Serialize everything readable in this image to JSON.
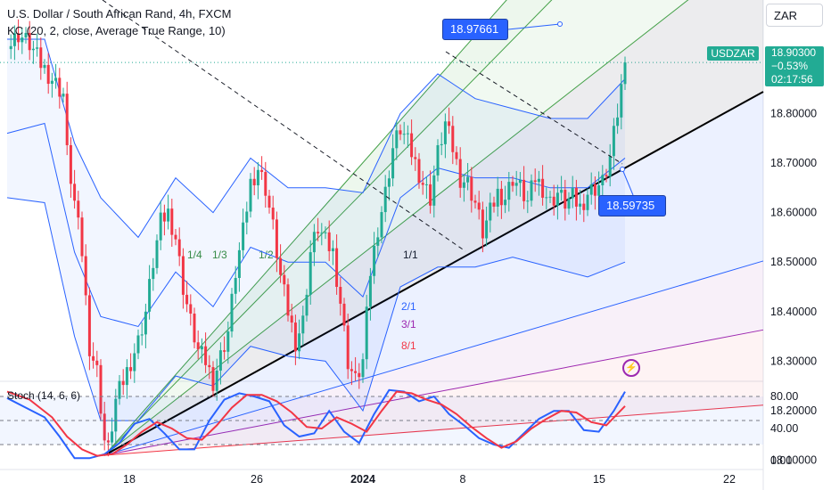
{
  "legend": {
    "title": "U.S. Dollar / South African Rand, 4h, FXCM",
    "indicator": "KC (20, 2, close, Average True Range, 10)",
    "oscillator": "Stoch (14, 6, 6)"
  },
  "currency_selector": "ZAR",
  "price_badge": {
    "symbol": "USDZAR",
    "price": "18.90300",
    "change": "−0.53%",
    "countdown": "02:17:56"
  },
  "callouts": {
    "upper": "18.97661",
    "lower": "18.59735"
  },
  "fan_labels": [
    "1/4",
    "1/3",
    "1/2",
    "1/1",
    "2/1",
    "3/1",
    "8/1"
  ],
  "colors": {
    "up": "#22ab94",
    "down": "#f23645",
    "kc": "#2962ff",
    "stoch_k": "#2962ff",
    "stoch_d": "#f23645",
    "trendline": "#000000"
  },
  "chart_data": [
    {
      "type": "candlestick",
      "title": "U.S. Dollar / South African Rand, 4h, FXCM",
      "x_ticks": [
        "18",
        "26",
        "2024",
        "8",
        "15",
        "22"
      ],
      "y_ticks": [
        "18.80000",
        "18.70000",
        "18.60000",
        "18.50000",
        "18.40000",
        "18.30000",
        "18.20000",
        "18.10000"
      ],
      "ylim": [
        18.06,
        19.01
      ],
      "last_price": 18.903,
      "candle_close_path": [
        [
          0,
          18.93
        ],
        [
          3,
          18.96
        ],
        [
          6,
          18.94
        ],
        [
          9,
          18.9
        ],
        [
          12,
          18.87
        ],
        [
          15,
          18.84
        ],
        [
          16,
          18.72
        ],
        [
          18,
          18.62
        ],
        [
          20,
          18.52
        ],
        [
          22,
          18.33
        ],
        [
          24,
          18.28
        ],
        [
          26,
          18.14
        ],
        [
          27,
          18.12
        ],
        [
          29,
          18.22
        ],
        [
          32,
          18.28
        ],
        [
          35,
          18.34
        ],
        [
          37,
          18.4
        ],
        [
          39,
          18.5
        ],
        [
          41,
          18.58
        ],
        [
          43,
          18.6
        ],
        [
          45,
          18.55
        ],
        [
          47,
          18.45
        ],
        [
          49,
          18.38
        ],
        [
          51,
          18.32
        ],
        [
          53,
          18.3
        ],
        [
          55,
          18.26
        ],
        [
          57,
          18.31
        ],
        [
          59,
          18.36
        ],
        [
          61,
          18.48
        ],
        [
          63,
          18.56
        ],
        [
          65,
          18.66
        ],
        [
          67,
          18.69
        ],
        [
          69,
          18.65
        ],
        [
          71,
          18.57
        ],
        [
          73,
          18.47
        ],
        [
          75,
          18.4
        ],
        [
          77,
          18.34
        ],
        [
          79,
          18.38
        ],
        [
          81,
          18.52
        ],
        [
          83,
          18.57
        ],
        [
          85,
          18.54
        ],
        [
          87,
          18.52
        ],
        [
          89,
          18.42
        ],
        [
          91,
          18.3
        ],
        [
          93,
          18.26
        ],
        [
          95,
          18.3
        ],
        [
          97,
          18.48
        ],
        [
          99,
          18.57
        ],
        [
          101,
          18.64
        ],
        [
          103,
          18.73
        ],
        [
          105,
          18.77
        ],
        [
          107,
          18.74
        ],
        [
          109,
          18.7
        ],
        [
          111,
          18.66
        ],
        [
          113,
          18.63
        ],
        [
          115,
          18.72
        ],
        [
          117,
          18.78
        ],
        [
          119,
          18.73
        ],
        [
          121,
          18.67
        ],
        [
          123,
          18.66
        ],
        [
          125,
          18.62
        ],
        [
          127,
          18.56
        ],
        [
          129,
          18.6
        ],
        [
          131,
          18.64
        ],
        [
          133,
          18.63
        ],
        [
          135,
          18.67
        ],
        [
          137,
          18.65
        ],
        [
          139,
          18.62
        ],
        [
          141,
          18.67
        ],
        [
          143,
          18.65
        ],
        [
          145,
          18.62
        ],
        [
          147,
          18.64
        ],
        [
          149,
          18.62
        ],
        [
          151,
          18.63
        ],
        [
          153,
          18.61
        ],
        [
          155,
          18.64
        ],
        [
          157,
          18.65
        ],
        [
          159,
          18.66
        ],
        [
          161,
          18.71
        ],
        [
          163,
          18.8
        ],
        [
          165,
          18.903
        ]
      ],
      "keltner": {
        "upper": [
          [
            0,
            18.95
          ],
          [
            10,
            18.95
          ],
          [
            18,
            18.74
          ],
          [
            25,
            18.63
          ],
          [
            35,
            18.55
          ],
          [
            45,
            18.67
          ],
          [
            55,
            18.6
          ],
          [
            65,
            18.71
          ],
          [
            75,
            18.65
          ],
          [
            85,
            18.65
          ],
          [
            95,
            18.64
          ],
          [
            105,
            18.8
          ],
          [
            115,
            18.88
          ],
          [
            125,
            18.83
          ],
          [
            135,
            18.81
          ],
          [
            145,
            18.79
          ],
          [
            155,
            18.79
          ],
          [
            165,
            18.87
          ]
        ],
        "middle": [
          [
            0,
            18.76
          ],
          [
            10,
            18.78
          ],
          [
            18,
            18.52
          ],
          [
            25,
            18.39
          ],
          [
            35,
            18.37
          ],
          [
            45,
            18.48
          ],
          [
            55,
            18.41
          ],
          [
            65,
            18.53
          ],
          [
            75,
            18.5
          ],
          [
            85,
            18.5
          ],
          [
            95,
            18.43
          ],
          [
            105,
            18.63
          ],
          [
            115,
            18.69
          ],
          [
            125,
            18.67
          ],
          [
            135,
            18.67
          ],
          [
            145,
            18.65
          ],
          [
            155,
            18.65
          ],
          [
            165,
            18.71
          ]
        ],
        "lower": [
          [
            0,
            18.63
          ],
          [
            10,
            18.62
          ],
          [
            18,
            18.35
          ],
          [
            25,
            18.18
          ],
          [
            35,
            18.18
          ],
          [
            45,
            18.27
          ],
          [
            55,
            18.25
          ],
          [
            65,
            18.33
          ],
          [
            75,
            18.31
          ],
          [
            85,
            18.3
          ],
          [
            95,
            18.2
          ],
          [
            105,
            18.45
          ],
          [
            115,
            18.49
          ],
          [
            125,
            18.49
          ],
          [
            135,
            18.51
          ],
          [
            145,
            18.49
          ],
          [
            155,
            18.47
          ],
          [
            165,
            18.5
          ]
        ]
      },
      "fan_origin": [
        26,
        18.11
      ],
      "fan_ratio_prices_at_bar_165": {
        "1/4": 19.3,
        "1/3": 19.18,
        "1/2": 18.93,
        "1/1": 18.69,
        "2/1": 18.42,
        "3/1": 18.31,
        "8/1": 18.19
      }
    },
    {
      "type": "line",
      "title": "Stoch (14, 6, 6)",
      "y_ticks": [
        "80.00",
        "40.00",
        "0.00"
      ],
      "ylim": [
        -5,
        100
      ],
      "series": [
        {
          "name": "%K",
          "values": [
            [
              0,
              78
            ],
            [
              5,
              66
            ],
            [
              10,
              54
            ],
            [
              14,
              30
            ],
            [
              18,
              3
            ],
            [
              22,
              3
            ],
            [
              26,
              8
            ],
            [
              30,
              22
            ],
            [
              34,
              46
            ],
            [
              38,
              52
            ],
            [
              42,
              34
            ],
            [
              46,
              14
            ],
            [
              50,
              14
            ],
            [
              54,
              50
            ],
            [
              58,
              76
            ],
            [
              62,
              84
            ],
            [
              66,
              80
            ],
            [
              70,
              74
            ],
            [
              74,
              44
            ],
            [
              78,
              30
            ],
            [
              82,
              34
            ],
            [
              86,
              62
            ],
            [
              90,
              36
            ],
            [
              94,
              22
            ],
            [
              98,
              58
            ],
            [
              102,
              88
            ],
            [
              106,
              86
            ],
            [
              110,
              74
            ],
            [
              114,
              80
            ],
            [
              118,
              58
            ],
            [
              122,
              44
            ],
            [
              126,
              28
            ],
            [
              130,
              20
            ],
            [
              134,
              16
            ],
            [
              138,
              34
            ],
            [
              142,
              52
            ],
            [
              146,
              62
            ],
            [
              150,
              62
            ],
            [
              154,
              38
            ],
            [
              158,
              36
            ],
            [
              162,
              62
            ],
            [
              165,
              86
            ]
          ]
        },
        {
          "name": "%D",
          "values": [
            [
              0,
              86
            ],
            [
              6,
              76
            ],
            [
              12,
              54
            ],
            [
              16,
              30
            ],
            [
              20,
              14
            ],
            [
              24,
              6
            ],
            [
              28,
              8
            ],
            [
              32,
              20
            ],
            [
              36,
              36
            ],
            [
              40,
              48
            ],
            [
              44,
              40
            ],
            [
              48,
              28
            ],
            [
              52,
              26
            ],
            [
              56,
              44
            ],
            [
              60,
              66
            ],
            [
              64,
              82
            ],
            [
              68,
              82
            ],
            [
              72,
              74
            ],
            [
              76,
              60
            ],
            [
              80,
              42
            ],
            [
              84,
              40
            ],
            [
              88,
              54
            ],
            [
              92,
              46
            ],
            [
              96,
              36
            ],
            [
              100,
              62
            ],
            [
              104,
              86
            ],
            [
              108,
              84
            ],
            [
              112,
              76
            ],
            [
              116,
              70
            ],
            [
              120,
              58
            ],
            [
              124,
              42
            ],
            [
              128,
              28
            ],
            [
              132,
              16
            ],
            [
              136,
              24
            ],
            [
              140,
              40
            ],
            [
              144,
              52
            ],
            [
              148,
              62
            ],
            [
              152,
              60
            ],
            [
              156,
              48
            ],
            [
              160,
              44
            ],
            [
              165,
              68
            ]
          ]
        }
      ]
    }
  ]
}
